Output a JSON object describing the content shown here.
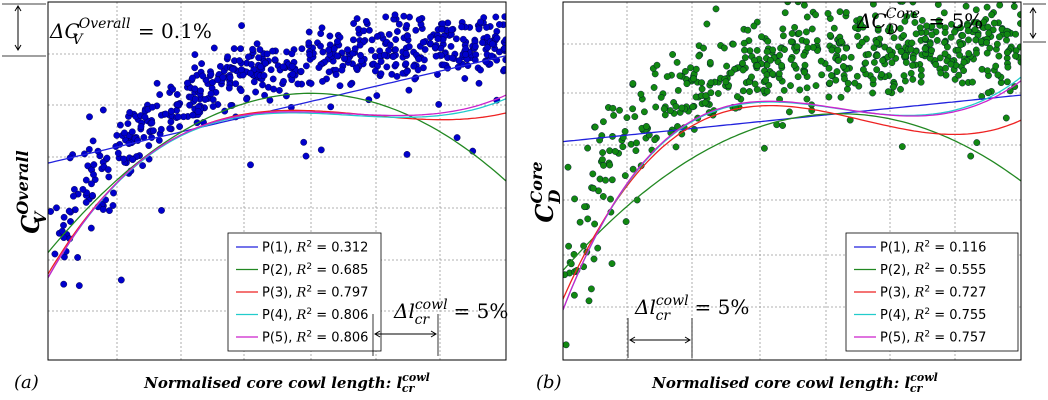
{
  "chart_data": [
    {
      "panel_label": "(a)",
      "type": "scatter",
      "ylabel_base": "C",
      "ylabel_sub": "V",
      "ylabel_sup": "Overall",
      "xlabel_main": "Normalised core cowl length",
      "xlabel_sym": "l",
      "xlabel_sub": "cr",
      "xlabel_sup": "cowl",
      "annotation_y": {
        "prefix": "ΔC",
        "sub": "V",
        "sup": "Overall",
        "value": " = 0.1%"
      },
      "annotation_x": {
        "prefix": "Δl",
        "sub": "cr",
        "sup": "cowl",
        "value": " = 5%"
      },
      "scatter_color": "#0000cc",
      "legend_position": "lower-right",
      "series": [
        {
          "name": "P(1)",
          "r2": "0.312",
          "color": "#2222dd"
        },
        {
          "name": "P(2)",
          "r2": "0.685",
          "color": "#228822"
        },
        {
          "name": "P(3)",
          "r2": "0.797",
          "color": "#ee2222"
        },
        {
          "name": "P(4)",
          "r2": "0.806",
          "color": "#22cccc"
        },
        {
          "name": "P(5)",
          "r2": "0.806",
          "color": "#cc22cc"
        }
      ]
    },
    {
      "panel_label": "(b)",
      "type": "scatter",
      "ylabel_base": "C",
      "ylabel_sub": "D",
      "ylabel_sup": "Core",
      "xlabel_main": "Normalised core cowl length",
      "xlabel_sym": "l",
      "xlabel_sub": "cr",
      "xlabel_sup": "cowl",
      "annotation_y": {
        "prefix": "ΔC",
        "sub": "D",
        "sup": "Core",
        "value": " = 5%"
      },
      "annotation_x": {
        "prefix": "Δl",
        "sub": "cr",
        "sup": "cowl",
        "value": " = 5%"
      },
      "scatter_color": "#118811",
      "legend_position": "lower-right",
      "series": [
        {
          "name": "P(1)",
          "r2": "0.116",
          "color": "#2222dd"
        },
        {
          "name": "P(2)",
          "r2": "0.555",
          "color": "#228822"
        },
        {
          "name": "P(3)",
          "r2": "0.727",
          "color": "#ee2222"
        },
        {
          "name": "P(4)",
          "r2": "0.755",
          "color": "#22cccc"
        },
        {
          "name": "P(5)",
          "r2": "0.757",
          "color": "#cc22cc"
        }
      ]
    }
  ]
}
